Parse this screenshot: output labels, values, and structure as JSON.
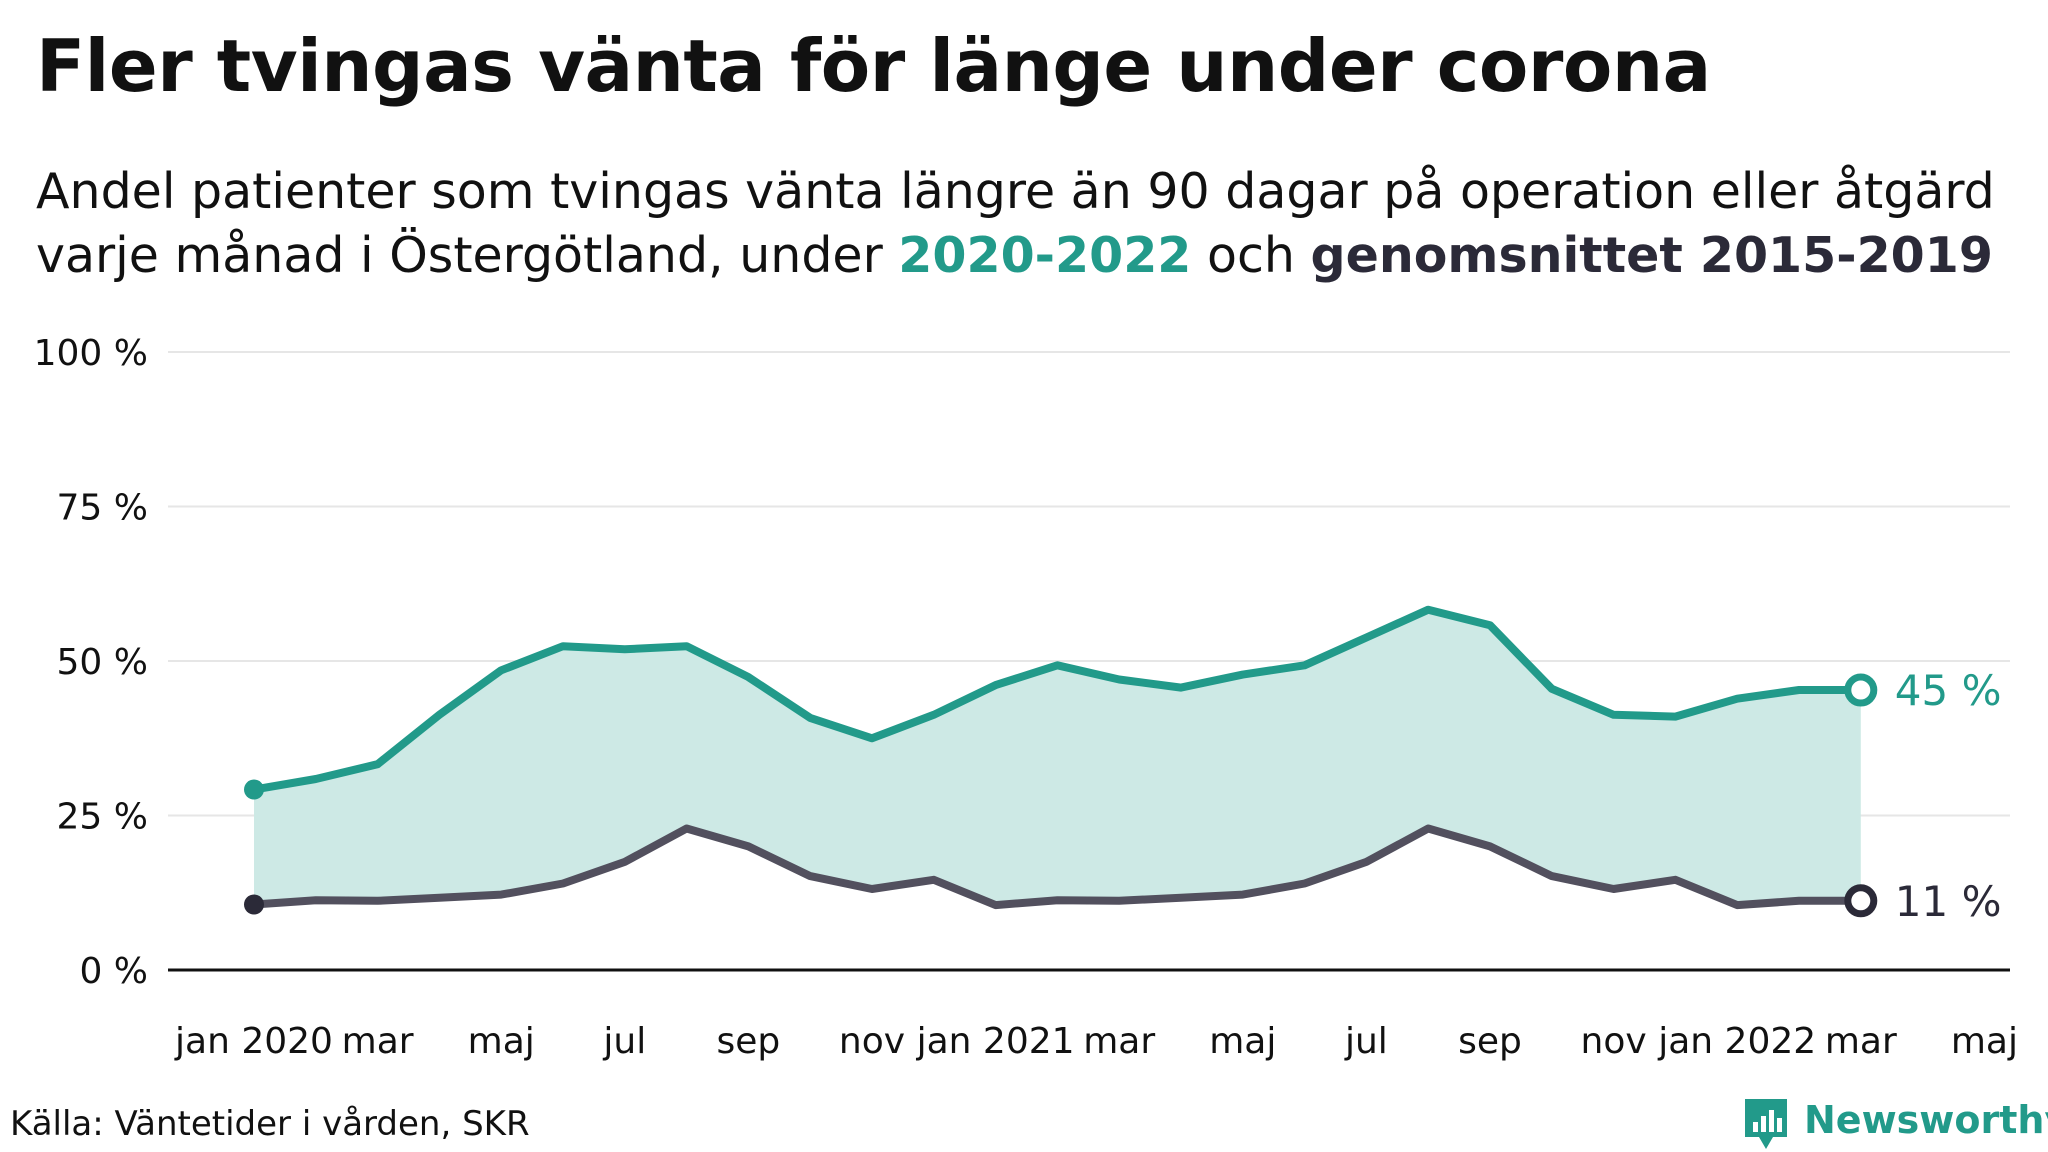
{
  "title": "Fler tvingas vänta för länge under corona",
  "subtitle": {
    "line1": "Andel patienter som tvingas vänta längre än 90 dagar på operation eller åtgärd",
    "line2_pre": "varje månad i Östergötland, under ",
    "highlight_a": "2020-2022",
    "line2_mid": " och ",
    "highlight_b": "genomsnittet 2015-2019"
  },
  "source": "Källa: Väntetider i vården, SKR",
  "brand": {
    "name": "Newsworthy",
    "icon": "newsworthy-logo-icon"
  },
  "colors": {
    "series_a": "#229a8a",
    "series_a_fill": "#cde9e5",
    "series_b": "#52505e",
    "series_b_dot": "#2b2a38",
    "grid": "#e6e6e6",
    "axis": "#111111"
  },
  "chart_data": {
    "type": "area",
    "x": [
      "2020-01",
      "2020-02",
      "2020-03",
      "2020-04",
      "2020-05",
      "2020-06",
      "2020-07",
      "2020-08",
      "2020-09",
      "2020-10",
      "2020-11",
      "2020-12",
      "2021-01",
      "2021-02",
      "2021-03",
      "2021-04",
      "2021-05",
      "2021-06",
      "2021-07",
      "2021-08",
      "2021-09",
      "2021-10",
      "2021-11",
      "2021-12",
      "2022-01",
      "2022-02",
      "2022-03"
    ],
    "series": [
      {
        "name": "2020-2022",
        "values": [
          29.2,
          30.9,
          33.3,
          41.3,
          48.5,
          52.4,
          51.9,
          52.4,
          47.4,
          40.8,
          37.5,
          41.3,
          46.1,
          49.3,
          47.0,
          45.7,
          47.8,
          49.3,
          53.8,
          58.3,
          55.8,
          45.5,
          41.3,
          41.0,
          43.9,
          45.3,
          45.3
        ],
        "end_label": "45 %"
      },
      {
        "name": "genomsnittet 2015-2019",
        "values": [
          10.6,
          11.3,
          11.2,
          11.7,
          12.2,
          14.0,
          17.5,
          22.9,
          20.0,
          15.2,
          13.1,
          14.6,
          10.5,
          11.3,
          11.2,
          11.7,
          12.2,
          14.0,
          17.5,
          22.9,
          20.0,
          15.2,
          13.1,
          14.6,
          10.5,
          11.2,
          11.2
        ],
        "end_label": "11 %"
      }
    ],
    "fill_between": true,
    "ylim": [
      0,
      100
    ],
    "y_ticks": [
      0,
      25,
      50,
      75,
      100
    ],
    "y_tick_labels": [
      "0 %",
      "25 %",
      "50 %",
      "75 %",
      "100 %"
    ],
    "x_tick_labels": [
      {
        "x": "2020-01",
        "label": "jan 2020"
      },
      {
        "x": "2020-03",
        "label": "mar"
      },
      {
        "x": "2020-05",
        "label": "maj"
      },
      {
        "x": "2020-07",
        "label": "jul"
      },
      {
        "x": "2020-09",
        "label": "sep"
      },
      {
        "x": "2020-11",
        "label": "nov"
      },
      {
        "x": "2021-01",
        "label": "jan 2021"
      },
      {
        "x": "2021-03",
        "label": "mar"
      },
      {
        "x": "2021-05",
        "label": "maj"
      },
      {
        "x": "2021-07",
        "label": "jul"
      },
      {
        "x": "2021-09",
        "label": "sep"
      },
      {
        "x": "2021-11",
        "label": "nov"
      },
      {
        "x": "2022-01",
        "label": "jan 2022"
      },
      {
        "x": "2022-03",
        "label": "mar"
      },
      {
        "x": "2022-05",
        "label": "maj"
      }
    ],
    "grid": true,
    "legend": "none"
  }
}
